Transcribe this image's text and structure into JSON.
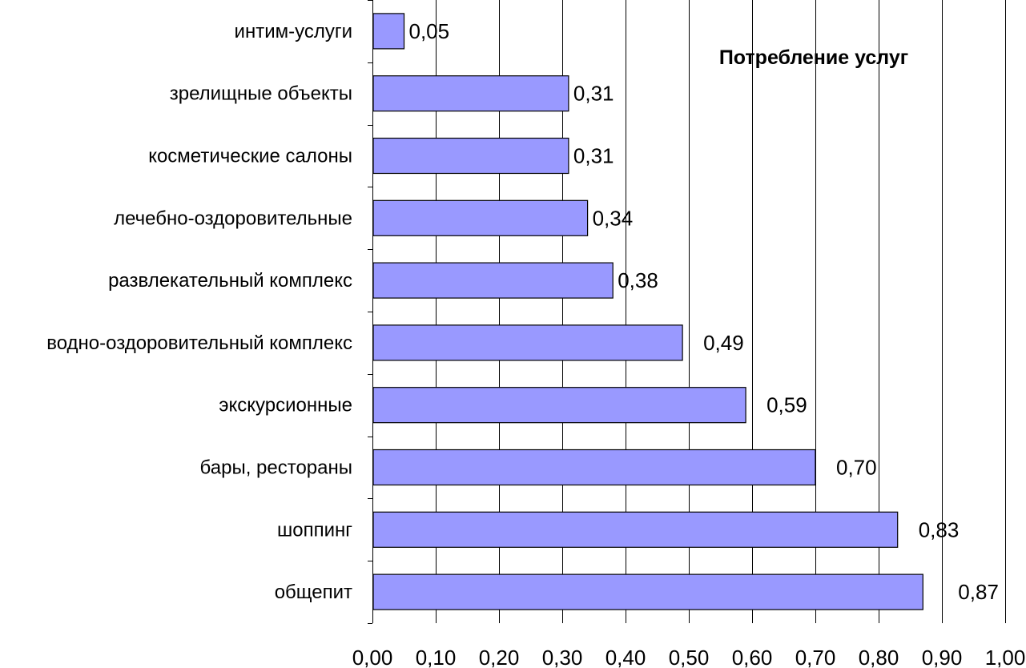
{
  "chart_data": {
    "type": "bar",
    "orientation": "horizontal",
    "title": "Потребление услуг",
    "categories": [
      "интим-услуги",
      "зрелищные объекты",
      "косметические салоны",
      "лечебно-оздоровительные",
      "развлекательный комплекс",
      "водно-оздоровительный комплекс",
      "экскурсионные",
      "бары, рестораны",
      "шоппинг",
      "общепит"
    ],
    "values": [
      0.05,
      0.31,
      0.31,
      0.34,
      0.38,
      0.49,
      0.59,
      0.7,
      0.83,
      0.87
    ],
    "value_labels": [
      "0,05",
      "0,31",
      "0,31",
      "0,34",
      "0,38",
      "0,49",
      "0,59",
      "0,70",
      "0,83",
      "0,87"
    ],
    "xlim": [
      0,
      1.0
    ],
    "xticks": [
      0,
      0.1,
      0.2,
      0.3,
      0.4,
      0.5,
      0.6,
      0.7,
      0.8,
      0.9,
      1.0
    ],
    "xtick_labels": [
      "0,00",
      "0,10",
      "0,20",
      "0,30",
      "0,40",
      "0,50",
      "0,60",
      "0,70",
      "0,80",
      "0,90",
      "1,00"
    ],
    "xlabel": "",
    "ylabel": "",
    "grid": true,
    "bar_color": "#9999FF",
    "bar_edge_color": "#000000",
    "grid_color": "#000000",
    "background": "#FFFFFF",
    "title_position": "top-right"
  }
}
